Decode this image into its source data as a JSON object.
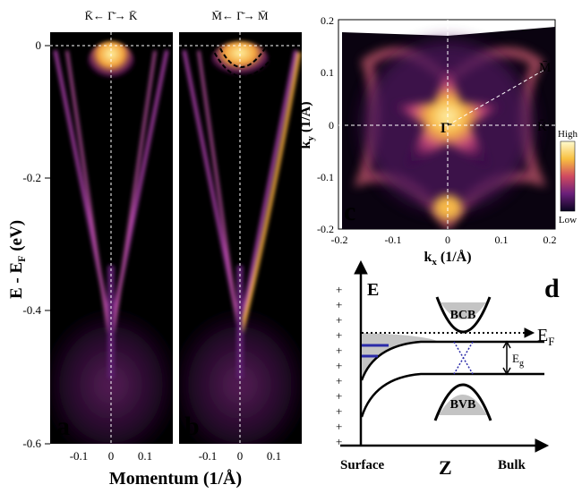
{
  "panel_a": {
    "letter": "a",
    "direction": "K̄← Γ̄→ K̄",
    "y_axis_label": "E - E",
    "y_axis_label_sub": "F",
    "y_axis_unit": " (eV)",
    "y_ticks": [
      "0",
      "-0.2",
      "-0.4",
      "-0.6"
    ],
    "x_ticks": [
      "-0.1",
      "0",
      "0.1"
    ]
  },
  "panel_b": {
    "letter": "b",
    "direction": "M̄← Γ̄→ M̄",
    "x_ticks": [
      "-0.1",
      "0",
      "0.1"
    ]
  },
  "shared_x_label": "Momentum (1/Å)",
  "panel_c": {
    "letter": "c",
    "y_label": "k",
    "y_label_sub": "y",
    "y_unit": " (1/Å)",
    "x_label": "k",
    "x_label_sub": "x",
    "x_unit": " (1/Å)",
    "y_ticks": [
      "0.2",
      "0.1",
      "0",
      "-0.1",
      "-0.2"
    ],
    "x_ticks": [
      "-0.2",
      "-0.1",
      "0",
      "0.1",
      "0.2"
    ],
    "point_gamma": "Γ̄",
    "point_m": "M̄",
    "point_k": "K̄",
    "colorbar_high": "High",
    "colorbar_low": "Low"
  },
  "panel_d": {
    "letter": "d",
    "energy_axis": "E",
    "fermi_label": "E",
    "fermi_sub": "F",
    "gap_label": "E",
    "gap_sub": "g",
    "bcb": "BCB",
    "bvb": "BVB",
    "surface": "Surface",
    "z_axis": "Z",
    "bulk": "Bulk",
    "plus": "+"
  },
  "colors": {
    "plot_bg": "#000000",
    "band": "#e07020",
    "band_hot": "#ffe070",
    "cone_band": "#9a2fa0",
    "guide": "#ffffff",
    "quantum_well": "#2a2aa8",
    "fill_gray": "#c4c4c4"
  }
}
